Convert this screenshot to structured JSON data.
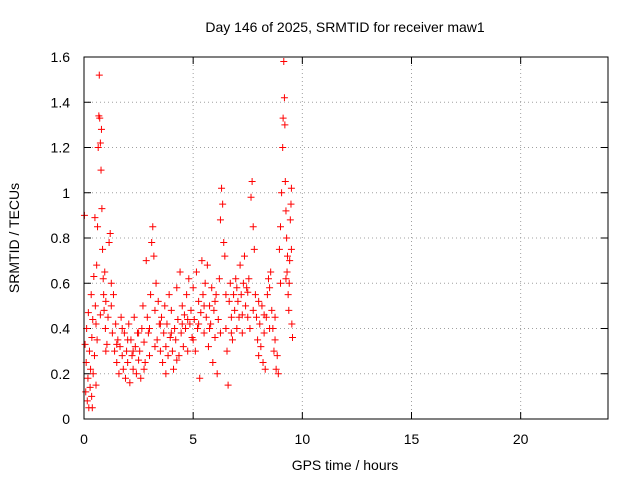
{
  "chart_data": {
    "type": "scatter",
    "title": "Day 146 of 2025, SRMTID for receiver maw1",
    "xlabel": "GPS time / hours",
    "ylabel": "SRMTID / TECUs",
    "xlim": [
      0,
      24
    ],
    "ylim": [
      0,
      1.6
    ],
    "x_ticks": [
      0,
      5,
      10,
      15,
      20
    ],
    "x_tick_labels": [
      "0",
      "5",
      "10",
      "15",
      "20"
    ],
    "y_ticks": [
      0,
      0.2,
      0.4,
      0.6,
      0.8,
      1.0,
      1.2,
      1.4,
      1.6
    ],
    "y_tick_labels": [
      "0",
      "0.2",
      "0.4",
      "0.6",
      "0.8",
      "1",
      "1.2",
      "1.4",
      "1.6"
    ],
    "grid": true,
    "marker": "+",
    "marker_color": "#ff0000",
    "series": [
      {
        "name": "SRMTID",
        "points": [
          [
            0.02,
            0.9
          ],
          [
            0.05,
            0.33
          ],
          [
            0.08,
            0.12
          ],
          [
            0.1,
            0.25
          ],
          [
            0.12,
            0.4
          ],
          [
            0.15,
            0.08
          ],
          [
            0.18,
            0.18
          ],
          [
            0.2,
            0.47
          ],
          [
            0.22,
            0.05
          ],
          [
            0.25,
            0.3
          ],
          [
            0.28,
            0.14
          ],
          [
            0.3,
            0.22
          ],
          [
            0.33,
            0.55
          ],
          [
            0.36,
            0.36
          ],
          [
            0.38,
            0.05
          ],
          [
            0.4,
            0.44
          ],
          [
            0.42,
            0.2
          ],
          [
            0.45,
            0.63
          ],
          [
            0.48,
            0.28
          ],
          [
            0.5,
            0.89
          ],
          [
            0.52,
            0.5
          ],
          [
            0.55,
            0.42
          ],
          [
            0.58,
            0.68
          ],
          [
            0.6,
            0.35
          ],
          [
            0.62,
            0.85
          ],
          [
            0.65,
            1.2
          ],
          [
            0.68,
            1.34
          ],
          [
            0.7,
            1.52
          ],
          [
            0.72,
            1.33
          ],
          [
            0.75,
            1.22
          ],
          [
            0.78,
            1.1
          ],
          [
            0.8,
            1.28
          ],
          [
            0.82,
            0.93
          ],
          [
            0.85,
            0.75
          ],
          [
            0.88,
            0.62
          ],
          [
            0.9,
            0.55
          ],
          [
            0.92,
            0.48
          ],
          [
            0.95,
            0.65
          ],
          [
            0.98,
            0.4
          ],
          [
            1.0,
            0.52
          ],
          [
            1.05,
            0.33
          ],
          [
            1.1,
            0.45
          ],
          [
            1.15,
            0.78
          ],
          [
            1.2,
            0.82
          ],
          [
            1.25,
            0.6
          ],
          [
            1.3,
            0.38
          ],
          [
            1.35,
            0.55
          ],
          [
            1.4,
            0.3
          ],
          [
            1.45,
            0.42
          ],
          [
            1.5,
            0.25
          ],
          [
            1.55,
            0.35
          ],
          [
            1.6,
            0.2
          ],
          [
            1.65,
            0.32
          ],
          [
            1.7,
            0.45
          ],
          [
            1.75,
            0.28
          ],
          [
            1.8,
            0.22
          ],
          [
            1.85,
            0.38
          ],
          [
            1.9,
            0.18
          ],
          [
            1.95,
            0.3
          ],
          [
            2.0,
            0.25
          ],
          [
            2.05,
            0.42
          ],
          [
            2.1,
            0.16
          ],
          [
            2.15,
            0.35
          ],
          [
            2.2,
            0.28
          ],
          [
            2.25,
            0.22
          ],
          [
            2.3,
            0.45
          ],
          [
            2.35,
            0.32
          ],
          [
            2.4,
            0.2
          ],
          [
            2.45,
            0.38
          ],
          [
            2.5,
            0.26
          ],
          [
            2.55,
            0.3
          ],
          [
            2.6,
            0.18
          ],
          [
            2.65,
            0.4
          ],
          [
            2.7,
            0.5
          ],
          [
            2.75,
            0.34
          ],
          [
            2.8,
            0.25
          ],
          [
            2.85,
            0.7
          ],
          [
            2.9,
            0.45
          ],
          [
            2.95,
            0.38
          ],
          [
            3.0,
            0.28
          ],
          [
            3.05,
            0.55
          ],
          [
            3.1,
            0.78
          ],
          [
            3.15,
            0.85
          ],
          [
            3.2,
            0.72
          ],
          [
            3.25,
            0.48
          ],
          [
            3.3,
            0.6
          ],
          [
            3.35,
            0.35
          ],
          [
            3.4,
            0.52
          ],
          [
            3.45,
            0.42
          ],
          [
            3.5,
            0.3
          ],
          [
            3.55,
            0.45
          ],
          [
            3.6,
            0.25
          ],
          [
            3.65,
            0.38
          ],
          [
            3.7,
            0.5
          ],
          [
            3.75,
            0.32
          ],
          [
            3.8,
            0.42
          ],
          [
            3.85,
            0.28
          ],
          [
            3.9,
            0.55
          ],
          [
            3.95,
            0.36
          ],
          [
            4.0,
            0.48
          ],
          [
            4.05,
            0.3
          ],
          [
            4.1,
            0.22
          ],
          [
            4.15,
            0.4
          ],
          [
            4.2,
            0.35
          ],
          [
            4.25,
            0.58
          ],
          [
            4.3,
            0.44
          ],
          [
            4.35,
            0.28
          ],
          [
            4.4,
            0.65
          ],
          [
            4.45,
            0.38
          ],
          [
            4.5,
            0.5
          ],
          [
            4.55,
            0.32
          ],
          [
            4.6,
            0.46
          ],
          [
            4.65,
            0.4
          ],
          [
            4.7,
            0.55
          ],
          [
            4.75,
            0.3
          ],
          [
            4.8,
            0.62
          ],
          [
            4.85,
            0.42
          ],
          [
            4.9,
            0.48
          ],
          [
            4.95,
            0.36
          ],
          [
            5.0,
            0.58
          ],
          [
            5.05,
            0.44
          ],
          [
            5.1,
            0.3
          ],
          [
            5.15,
            0.65
          ],
          [
            5.2,
            0.4
          ],
          [
            5.25,
            0.52
          ],
          [
            5.3,
            0.18
          ],
          [
            5.35,
            0.47
          ],
          [
            5.4,
            0.7
          ],
          [
            5.45,
            0.55
          ],
          [
            5.5,
            0.38
          ],
          [
            5.55,
            0.6
          ],
          [
            5.6,
            0.45
          ],
          [
            5.65,
            0.68
          ],
          [
            5.7,
            0.32
          ],
          [
            5.75,
            0.5
          ],
          [
            5.8,
            0.42
          ],
          [
            5.85,
            0.58
          ],
          [
            5.9,
            0.25
          ],
          [
            5.95,
            0.48
          ],
          [
            6.0,
            0.36
          ],
          [
            6.05,
            0.55
          ],
          [
            6.1,
            0.2
          ],
          [
            6.15,
            0.44
          ],
          [
            6.2,
            0.62
          ],
          [
            6.25,
            0.88
          ],
          [
            6.3,
            1.02
          ],
          [
            6.35,
            0.95
          ],
          [
            6.4,
            0.78
          ],
          [
            6.45,
            0.72
          ],
          [
            6.5,
            0.4
          ],
          [
            6.55,
            0.3
          ],
          [
            6.6,
            0.15
          ],
          [
            6.65,
            0.52
          ],
          [
            6.7,
            0.6
          ],
          [
            6.75,
            0.45
          ],
          [
            6.8,
            0.35
          ],
          [
            6.85,
            0.55
          ],
          [
            6.9,
            0.48
          ],
          [
            6.95,
            0.62
          ],
          [
            7.0,
            0.4
          ],
          [
            7.05,
            0.52
          ],
          [
            7.1,
            0.45
          ],
          [
            7.15,
            0.68
          ],
          [
            7.2,
            0.55
          ],
          [
            7.25,
            0.38
          ],
          [
            7.3,
            0.6
          ],
          [
            7.35,
            0.72
          ],
          [
            7.4,
            0.5
          ],
          [
            7.45,
            0.58
          ],
          [
            7.5,
            0.45
          ],
          [
            7.55,
            0.62
          ],
          [
            7.6,
            0.4
          ],
          [
            7.65,
            0.98
          ],
          [
            7.7,
            1.05
          ],
          [
            7.75,
            0.85
          ],
          [
            7.8,
            0.75
          ],
          [
            7.85,
            0.55
          ],
          [
            7.9,
            0.45
          ],
          [
            7.95,
            0.35
          ],
          [
            8.0,
            0.28
          ],
          [
            8.05,
            0.42
          ],
          [
            8.1,
            0.32
          ],
          [
            8.15,
            0.5
          ],
          [
            8.2,
            0.25
          ],
          [
            8.25,
            0.38
          ],
          [
            8.3,
            0.22
          ],
          [
            8.35,
            0.45
          ],
          [
            8.4,
            0.55
          ],
          [
            8.45,
            0.62
          ],
          [
            8.5,
            0.58
          ],
          [
            8.55,
            0.65
          ],
          [
            8.6,
            0.48
          ],
          [
            8.65,
            0.4
          ],
          [
            8.7,
            0.3
          ],
          [
            8.75,
            0.35
          ],
          [
            8.8,
            0.22
          ],
          [
            8.85,
            0.28
          ],
          [
            8.9,
            0.2
          ],
          [
            8.95,
            0.75
          ],
          [
            9.0,
            0.85
          ],
          [
            9.05,
            1.0
          ],
          [
            9.1,
            1.2
          ],
          [
            9.12,
            1.33
          ],
          [
            9.15,
            1.58
          ],
          [
            9.18,
            1.42
          ],
          [
            9.2,
            1.3
          ],
          [
            9.22,
            1.05
          ],
          [
            9.25,
            0.92
          ],
          [
            9.28,
            0.8
          ],
          [
            9.3,
            0.65
          ],
          [
            9.32,
            0.72
          ],
          [
            9.35,
            0.55
          ],
          [
            9.38,
            0.48
          ],
          [
            9.4,
            0.6
          ],
          [
            9.42,
            0.7
          ],
          [
            9.45,
            0.88
          ],
          [
            9.48,
            0.95
          ],
          [
            9.5,
            1.02
          ],
          [
            9.52,
            0.42
          ],
          [
            9.55,
            0.36
          ],
          [
            0.35,
            0.1
          ],
          [
            0.55,
            0.15
          ],
          [
            0.75,
            0.46
          ],
          [
            1.0,
            0.3
          ],
          [
            1.25,
            0.5
          ],
          [
            1.5,
            0.33
          ],
          [
            1.75,
            0.4
          ],
          [
            2.0,
            0.35
          ],
          [
            2.25,
            0.3
          ],
          [
            2.5,
            0.38
          ],
          [
            2.75,
            0.22
          ],
          [
            3.0,
            0.4
          ],
          [
            3.25,
            0.32
          ],
          [
            3.5,
            0.42
          ],
          [
            3.75,
            0.2
          ],
          [
            4.0,
            0.38
          ],
          [
            4.25,
            0.26
          ],
          [
            4.5,
            0.42
          ],
          [
            4.75,
            0.44
          ],
          [
            5.0,
            0.35
          ],
          [
            5.25,
            0.42
          ],
          [
            5.5,
            0.5
          ],
          [
            5.75,
            0.4
          ],
          [
            6.0,
            0.52
          ],
          [
            6.25,
            0.38
          ],
          [
            6.5,
            0.55
          ],
          [
            6.75,
            0.38
          ],
          [
            7.0,
            0.58
          ],
          [
            7.25,
            0.46
          ],
          [
            7.5,
            0.56
          ],
          [
            7.75,
            0.48
          ],
          [
            8.0,
            0.52
          ],
          [
            8.25,
            0.46
          ],
          [
            8.5,
            0.4
          ],
          [
            8.75,
            0.45
          ],
          [
            9.0,
            0.6
          ],
          [
            9.25,
            0.62
          ],
          [
            9.5,
            0.75
          ]
        ]
      }
    ]
  }
}
